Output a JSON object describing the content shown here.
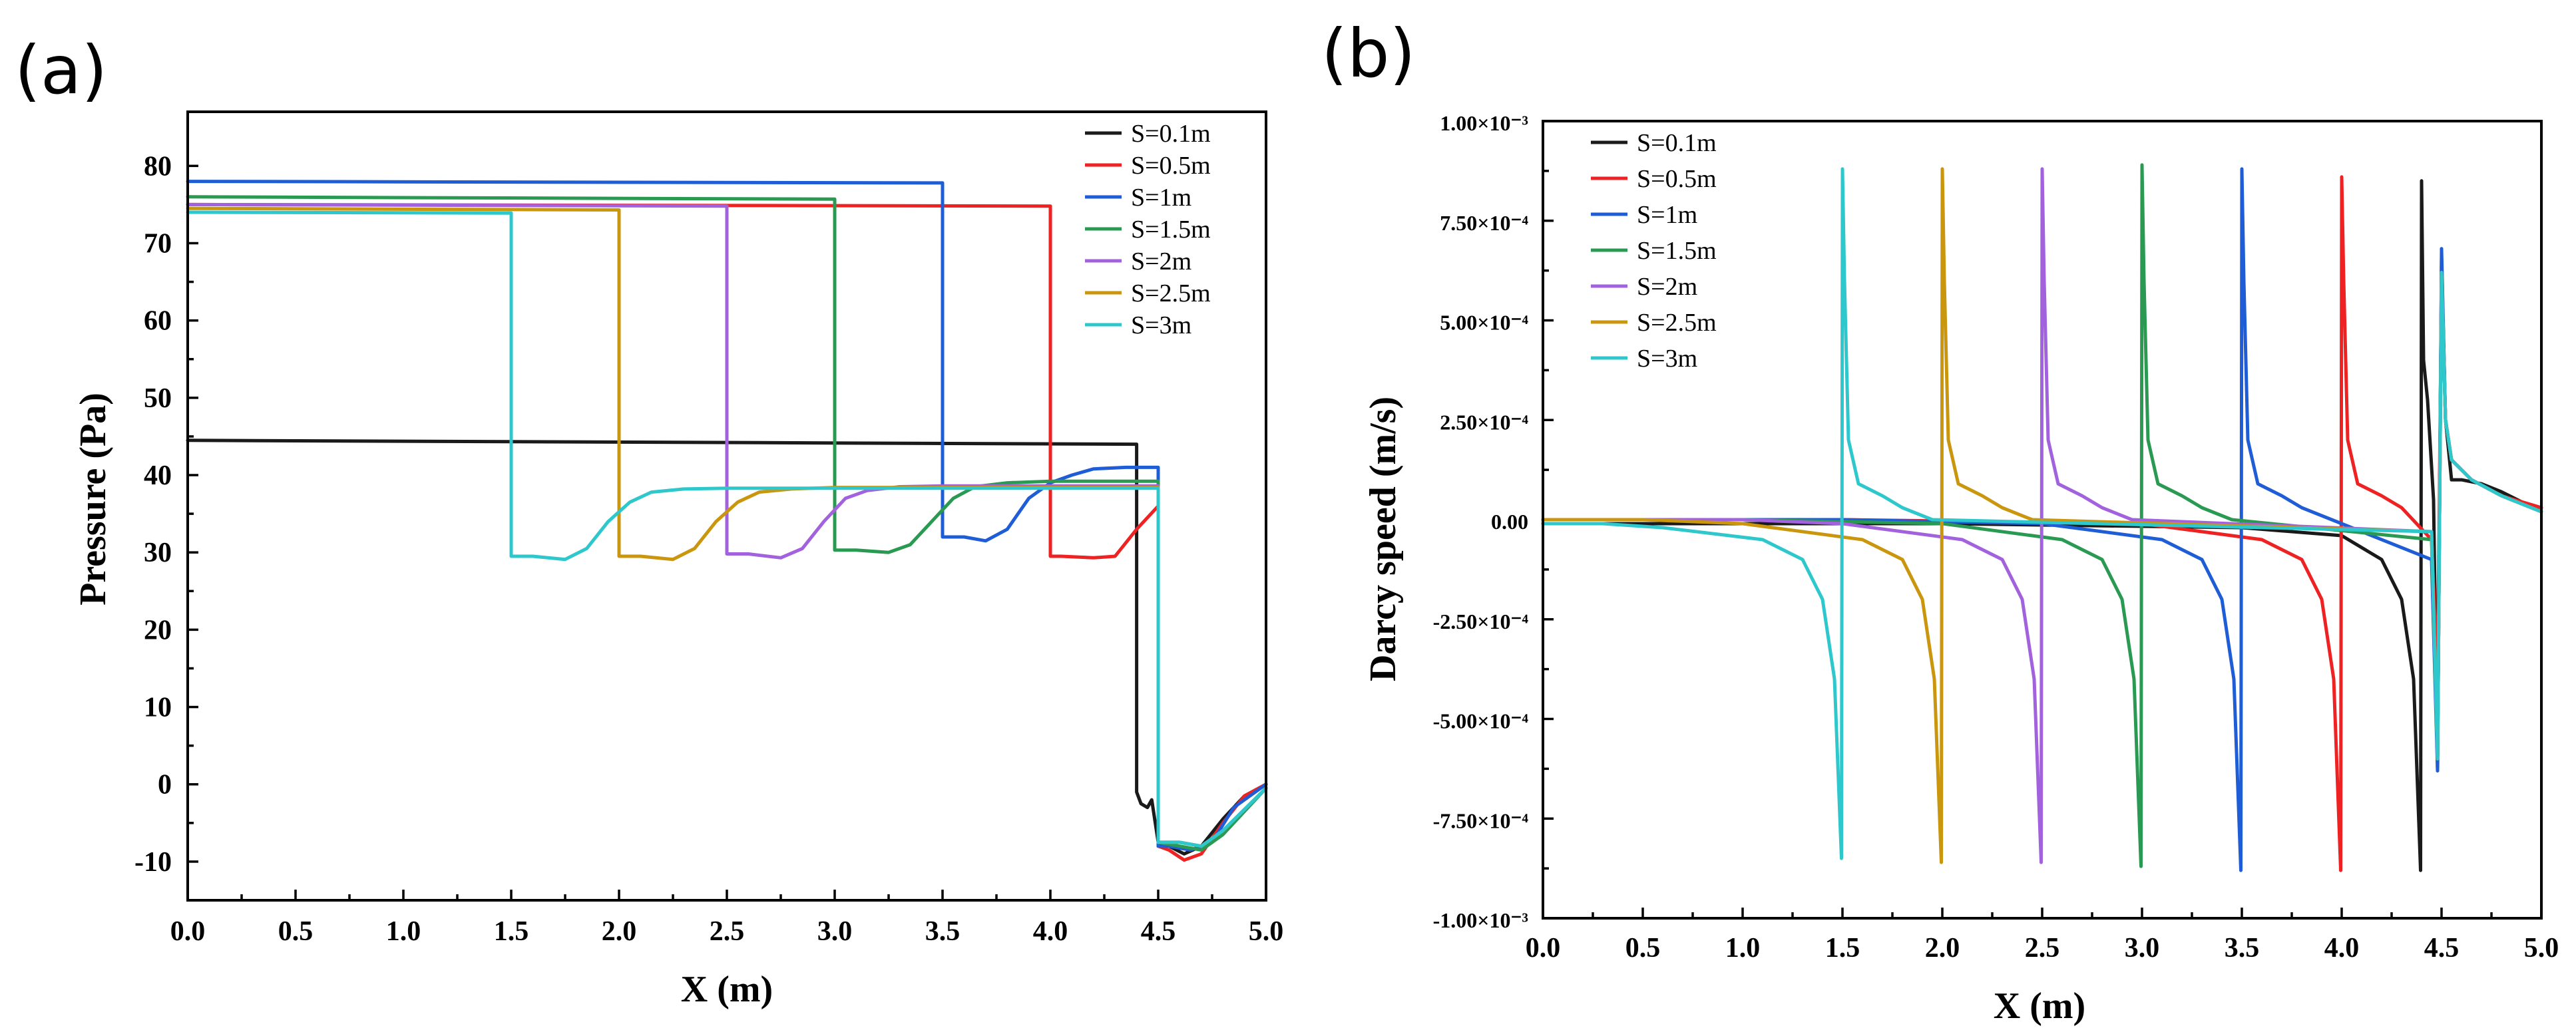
{
  "chart_data": [
    {
      "panel": "(a)",
      "type": "line",
      "title": "",
      "xlabel": "X (m)",
      "ylabel": "Pressure (Pa)",
      "xlim": [
        0,
        5
      ],
      "ylim": [
        -15,
        87
      ],
      "xticks": [
        0,
        0.5,
        1,
        1.5,
        2,
        2.5,
        3,
        3.5,
        4,
        4.5,
        5
      ],
      "xtick_labels": [
        "0.0",
        "0.5",
        "1.0",
        "1.5",
        "2.0",
        "2.5",
        "3.0",
        "3.5",
        "4.0",
        "4.5",
        "5.0"
      ],
      "yticks": [
        -10,
        0,
        10,
        20,
        30,
        40,
        50,
        60,
        70,
        80
      ],
      "ytick_labels": [
        "-10",
        "0",
        "10",
        "20",
        "30",
        "40",
        "50",
        "60",
        "70",
        "80"
      ],
      "legend_position": "top-right",
      "series": [
        {
          "name": "S=0.1m",
          "color": "#1a1a1a",
          "x": [
            0,
            4.4,
            4.4,
            4.42,
            4.45,
            4.47,
            4.5,
            4.5,
            4.55,
            4.62,
            4.7,
            4.8,
            4.9,
            5.0
          ],
          "y": [
            44.5,
            44,
            -1,
            -2.5,
            -3,
            -2,
            -7.5,
            -7.5,
            -8,
            -9,
            -8,
            -4.5,
            -1.5,
            0
          ]
        },
        {
          "name": "S=0.5m",
          "color": "#ee2222",
          "x": [
            0,
            4.0,
            4.0,
            4.05,
            4.2,
            4.3,
            4.4,
            4.5,
            4.5,
            4.55,
            4.62,
            4.7,
            4.8,
            4.9,
            5.0
          ],
          "y": [
            75,
            74.8,
            29.5,
            29.5,
            29.3,
            29.5,
            33,
            36,
            -8,
            -8.5,
            -9.8,
            -9,
            -5,
            -1.5,
            0
          ]
        },
        {
          "name": "S=1m",
          "color": "#1f5dd6",
          "x": [
            0,
            3.5,
            3.5,
            3.6,
            3.7,
            3.8,
            3.9,
            4.0,
            4.1,
            4.2,
            4.35,
            4.5,
            4.5,
            4.55,
            4.65,
            4.75,
            4.85,
            5.0
          ],
          "y": [
            78,
            77.8,
            32,
            32,
            31.5,
            33,
            37,
            39,
            40,
            40.8,
            41,
            41,
            -8,
            -8,
            -8.5,
            -7.5,
            -3,
            0
          ]
        },
        {
          "name": "S=1.5m",
          "color": "#2a9a52",
          "x": [
            0,
            3.0,
            3.0,
            3.1,
            3.25,
            3.35,
            3.45,
            3.55,
            3.65,
            3.8,
            4.0,
            4.5,
            4.5,
            4.6,
            4.7,
            4.8,
            5.0
          ],
          "y": [
            76,
            75.7,
            30.3,
            30.3,
            30,
            31,
            34,
            37,
            38.5,
            39,
            39.2,
            39.2,
            -7.5,
            -8,
            -8.5,
            -6.5,
            -0.5
          ]
        },
        {
          "name": "S=2m",
          "color": "#a362dd",
          "x": [
            0,
            2.5,
            2.5,
            2.6,
            2.75,
            2.85,
            2.95,
            3.05,
            3.15,
            3.3,
            3.5,
            4.5,
            4.5,
            4.6,
            4.7,
            4.8,
            5.0
          ],
          "y": [
            75,
            74.8,
            29.8,
            29.8,
            29.3,
            30.5,
            34,
            37,
            38,
            38.5,
            38.6,
            38.6,
            -7.5,
            -7.5,
            -8,
            -6,
            -0.5
          ]
        },
        {
          "name": "S=2.5m",
          "color": "#c9960e",
          "x": [
            0,
            2.0,
            2.0,
            2.1,
            2.25,
            2.35,
            2.45,
            2.55,
            2.65,
            2.8,
            3.0,
            4.5,
            4.5,
            4.6,
            4.7,
            4.8,
            5.0
          ],
          "y": [
            74.5,
            74.3,
            29.5,
            29.5,
            29.1,
            30.5,
            34,
            36.5,
            37.8,
            38.2,
            38.4,
            38.4,
            -7.5,
            -7.5,
            -8,
            -6,
            -0.5
          ]
        },
        {
          "name": "S=3m",
          "color": "#2ec8cc",
          "x": [
            0,
            1.5,
            1.5,
            1.6,
            1.75,
            1.85,
            1.95,
            2.05,
            2.15,
            2.3,
            2.5,
            4.5,
            4.5,
            4.6,
            4.7,
            4.8,
            5.0
          ],
          "y": [
            74,
            73.9,
            29.5,
            29.5,
            29.1,
            30.5,
            34,
            36.5,
            37.8,
            38.2,
            38.3,
            38.3,
            -7.5,
            -7.5,
            -8,
            -6,
            -0.5
          ]
        }
      ]
    },
    {
      "panel": "(b)",
      "type": "line",
      "title": "",
      "xlabel": "X (m)",
      "ylabel": "Darcy speed (m/s)",
      "xlim": [
        0,
        5
      ],
      "ylim": [
        -0.001,
        0.001
      ],
      "xticks": [
        0,
        0.5,
        1,
        1.5,
        2,
        2.5,
        3,
        3.5,
        4,
        4.5,
        5
      ],
      "xtick_labels": [
        "0.0",
        "0.5",
        "1.0",
        "1.5",
        "2.0",
        "2.5",
        "3.0",
        "3.5",
        "4.0",
        "4.5",
        "5.0"
      ],
      "yticks": [
        -0.001,
        -0.00075,
        -0.0005,
        -0.00025,
        0,
        0.00025,
        0.0005,
        0.00075,
        0.001
      ],
      "ytick_labels": [
        "-1.00×10⁻³",
        "-7.50×10⁻⁴",
        "-5.00×10⁻⁴",
        "-2.50×10⁻⁴",
        "0.00",
        "2.50×10⁻⁴",
        "5.00×10⁻⁴",
        "7.50×10⁻⁴",
        "1.00×10⁻³"
      ],
      "legend_position": "top-left",
      "series": [
        {
          "name": "S=0.1m",
          "color": "#1a1a1a",
          "x": [
            0,
            2.0,
            3.5,
            4.0,
            4.2,
            4.3,
            4.36,
            4.395,
            4.4,
            4.41,
            4.43,
            4.46,
            4.48,
            4.5,
            4.52,
            4.55,
            4.6,
            4.7,
            4.8,
            5.0
          ],
          "y": [
            -1e-05,
            -1e-05,
            -2e-05,
            -4e-05,
            -0.0001,
            -0.0002,
            -0.0004,
            -0.00088,
            0.00085,
            0.0004,
            0.0003,
            5e-05,
            -0.00063,
            0.00066,
            0.00025,
            0.0001,
            0.0001,
            9e-05,
            7e-05,
            2e-05
          ]
        },
        {
          "name": "S=0.5m",
          "color": "#ee2222",
          "x": [
            0,
            1.5,
            3.0,
            3.6,
            3.8,
            3.9,
            3.96,
            3.995,
            4.0,
            4.01,
            4.03,
            4.08,
            4.2,
            4.3,
            4.45,
            4.48,
            4.5,
            4.52,
            4.55,
            4.65,
            4.8,
            5.0
          ],
          "y": [
            0,
            0,
            -1e-05,
            -5e-05,
            -0.0001,
            -0.0002,
            -0.0004,
            -0.00088,
            0.00086,
            0.0006,
            0.0002,
            9e-05,
            6e-05,
            3e-05,
            -5e-05,
            -0.0004,
            0.0006,
            0.00025,
            0.00015,
            0.0001,
            6e-05,
            3e-05
          ]
        },
        {
          "name": "S=1m",
          "color": "#1f5dd6",
          "x": [
            0,
            1.5,
            2.5,
            3.1,
            3.3,
            3.4,
            3.46,
            3.495,
            3.5,
            3.51,
            3.53,
            3.58,
            3.7,
            3.8,
            3.95,
            4.45,
            4.48,
            4.5,
            4.52,
            4.55,
            4.65,
            4.8,
            5.0
          ],
          "y": [
            0,
            0,
            -1e-05,
            -5e-05,
            -0.0001,
            -0.0002,
            -0.0004,
            -0.00088,
            0.00088,
            0.0006,
            0.0002,
            9e-05,
            6e-05,
            3e-05,
            0,
            -0.0001,
            -0.00063,
            0.00068,
            0.00025,
            0.00015,
            0.0001,
            6e-05,
            2e-05
          ]
        },
        {
          "name": "S=1.5m",
          "color": "#2a9a52",
          "x": [
            0,
            1.0,
            2.0,
            2.6,
            2.8,
            2.9,
            2.96,
            2.995,
            3.0,
            3.01,
            3.03,
            3.08,
            3.2,
            3.3,
            3.45,
            4.45,
            4.48,
            4.5,
            4.52,
            4.55,
            4.65,
            4.8,
            5.0
          ],
          "y": [
            0,
            0,
            -1e-05,
            -5e-05,
            -0.0001,
            -0.0002,
            -0.0004,
            -0.00087,
            0.00089,
            0.0006,
            0.0002,
            9e-05,
            6e-05,
            3e-05,
            0,
            -5e-05,
            -0.0006,
            0.00062,
            0.00025,
            0.00015,
            0.0001,
            6e-05,
            2e-05
          ]
        },
        {
          "name": "S=2m",
          "color": "#a362dd",
          "x": [
            0,
            1.0,
            1.5,
            2.1,
            2.3,
            2.4,
            2.46,
            2.495,
            2.5,
            2.51,
            2.53,
            2.58,
            2.7,
            2.8,
            2.95,
            4.45,
            4.48,
            4.5,
            4.52,
            4.55,
            4.65,
            4.8,
            5.0
          ],
          "y": [
            0,
            0,
            -1e-05,
            -5e-05,
            -0.0001,
            -0.0002,
            -0.0004,
            -0.00086,
            0.00088,
            0.0006,
            0.0002,
            9e-05,
            6e-05,
            3e-05,
            0,
            -3e-05,
            -0.0006,
            0.00062,
            0.00025,
            0.00015,
            0.0001,
            6e-05,
            2e-05
          ]
        },
        {
          "name": "S=2.5m",
          "color": "#c9960e",
          "x": [
            0,
            0.5,
            1.0,
            1.6,
            1.8,
            1.9,
            1.96,
            1.995,
            2.0,
            2.01,
            2.03,
            2.08,
            2.2,
            2.3,
            2.45,
            4.45,
            4.48,
            4.5,
            4.52,
            4.55,
            4.65,
            4.8,
            5.0
          ],
          "y": [
            0,
            0,
            -1e-05,
            -5e-05,
            -0.0001,
            -0.0002,
            -0.0004,
            -0.00086,
            0.00088,
            0.0006,
            0.0002,
            9e-05,
            6e-05,
            3e-05,
            0,
            -3e-05,
            -0.0006,
            0.00062,
            0.00025,
            0.00015,
            0.0001,
            6e-05,
            2e-05
          ]
        },
        {
          "name": "S=3m",
          "color": "#2ec8cc",
          "x": [
            0,
            0.3,
            0.6,
            1.1,
            1.3,
            1.4,
            1.46,
            1.495,
            1.5,
            1.51,
            1.53,
            1.58,
            1.7,
            1.8,
            1.95,
            4.45,
            4.48,
            4.5,
            4.52,
            4.55,
            4.65,
            4.8,
            5.0
          ],
          "y": [
            -1e-05,
            -1e-05,
            -2e-05,
            -5e-05,
            -0.0001,
            -0.0002,
            -0.0004,
            -0.00085,
            0.00088,
            0.0006,
            0.0002,
            9e-05,
            6e-05,
            3e-05,
            0,
            -3e-05,
            -0.0006,
            0.00062,
            0.00025,
            0.00015,
            0.0001,
            6e-05,
            2e-05
          ]
        }
      ]
    }
  ]
}
